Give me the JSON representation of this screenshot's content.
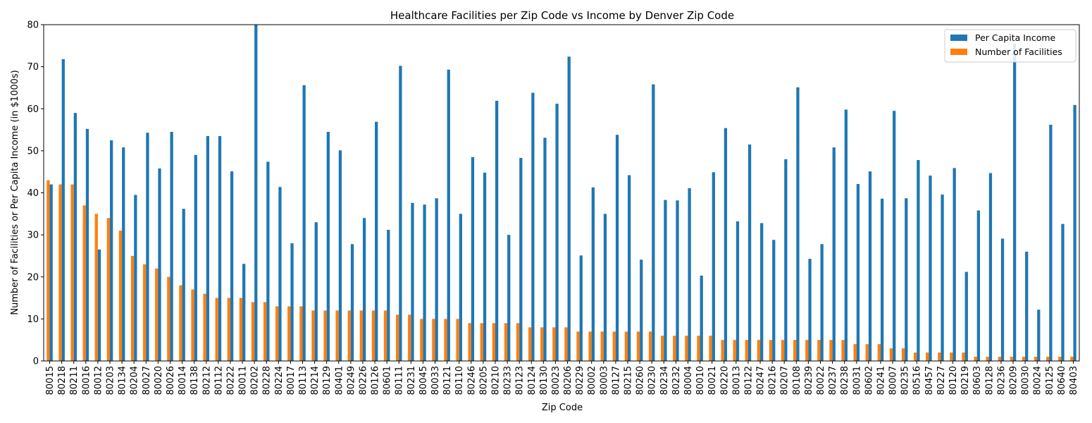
{
  "chart_data": {
    "type": "bar",
    "title": "Healthcare Facilities per Zip Code vs Income by Denver Zip Code",
    "xlabel": "Zip Code",
    "ylabel": "Number of Facilities or Per Capita Income (in $1000s)",
    "ylim": [
      0,
      80
    ],
    "yticks": [
      "0",
      "10",
      "20",
      "30",
      "40",
      "50",
      "60",
      "70",
      "80"
    ],
    "grid": false,
    "legend_position": "top-right",
    "categories": [
      "80015",
      "80218",
      "80211",
      "80016",
      "80012",
      "80203",
      "80134",
      "80204",
      "80027",
      "80020",
      "80026",
      "80014",
      "80138",
      "80212",
      "80112",
      "80222",
      "80011",
      "80202",
      "80228",
      "80224",
      "80017",
      "80113",
      "80214",
      "80129",
      "80401",
      "80249",
      "80226",
      "80126",
      "80601",
      "80111",
      "80231",
      "80045",
      "80033",
      "80121",
      "80110",
      "80246",
      "80205",
      "80210",
      "80233",
      "80123",
      "80124",
      "80130",
      "80023",
      "80206",
      "80229",
      "80002",
      "80003",
      "80127",
      "80215",
      "80260",
      "80230",
      "80234",
      "80232",
      "80004",
      "80010",
      "80021",
      "80220",
      "80013",
      "80122",
      "80247",
      "80216",
      "80207",
      "80108",
      "80239",
      "80022",
      "80237",
      "80238",
      "80031",
      "80602",
      "80241",
      "80007",
      "80235",
      "80516",
      "80457",
      "80227",
      "80120",
      "80219",
      "80603",
      "80128",
      "80236",
      "80209",
      "80030",
      "80024",
      "80125",
      "80640",
      "80403"
    ],
    "series": [
      {
        "name": "Number of Facilities",
        "color": "#ff7f0e",
        "values": [
          43,
          42,
          42,
          37,
          35,
          34,
          31,
          25,
          23,
          22,
          20,
          18,
          17,
          16,
          15,
          15,
          15,
          14,
          14,
          13,
          13,
          13,
          12,
          12,
          12,
          12,
          12,
          12,
          12,
          11,
          11,
          10,
          10,
          10,
          10,
          9,
          9,
          9,
          9,
          9,
          8,
          8,
          8,
          8,
          7,
          7,
          7,
          7,
          7,
          7,
          7,
          6,
          6,
          6,
          6,
          6,
          5,
          5,
          5,
          5,
          5,
          5,
          5,
          5,
          5,
          5,
          5,
          4,
          4,
          4,
          3,
          3,
          2,
          2,
          2,
          2,
          2,
          1,
          1,
          1,
          1,
          1,
          1,
          1,
          1,
          1
        ]
      },
      {
        "name": "Per Capita Income",
        "color": "#1f77b4",
        "values": [
          42,
          71.8,
          59,
          55.2,
          26.5,
          52.5,
          50.8,
          39.5,
          54.3,
          45.8,
          54.5,
          36.2,
          49,
          53.5,
          53.5,
          45.1,
          23.1,
          80,
          47.4,
          41.4,
          28,
          65.6,
          33,
          54.5,
          50.1,
          27.8,
          34,
          56.9,
          31.2,
          70.2,
          37.6,
          37.2,
          38.7,
          69.3,
          35,
          48.5,
          44.8,
          61.9,
          30,
          48.3,
          63.8,
          53.1,
          61.2,
          72.4,
          25.1,
          41.3,
          35,
          53.8,
          44.2,
          24.1,
          65.8,
          38.3,
          38.2,
          41.1,
          20.3,
          44.9,
          55.4,
          33.2,
          51.5,
          32.8,
          28.8,
          48,
          65.1,
          24.3,
          27.8,
          50.8,
          59.8,
          42.1,
          45.1,
          38.6,
          59.5,
          38.7,
          47.8,
          44.1,
          39.6,
          45.9,
          21.2,
          35.8,
          44.7,
          29.1,
          75.5,
          26,
          12.2,
          56.2,
          32.6,
          60.9
        ]
      }
    ]
  }
}
